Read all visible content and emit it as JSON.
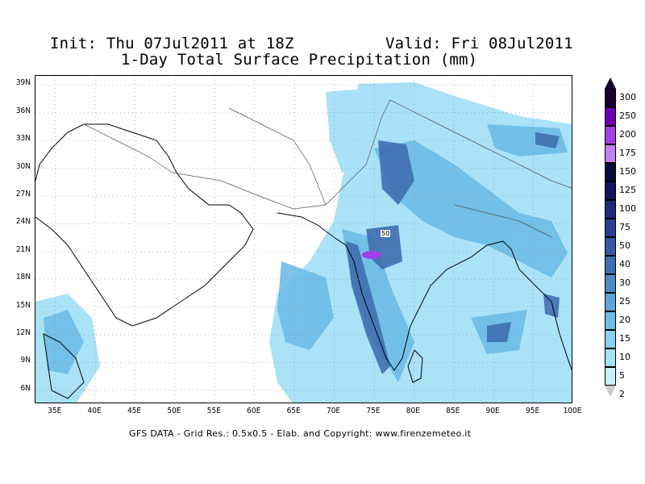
{
  "header": {
    "init": "Init: Thu 07Jul2011 at 18Z",
    "valid": "Valid: Fri 08Jul2011",
    "subtitle": "1-Day Total Surface Precipitation (mm)"
  },
  "map": {
    "lat_labels": [
      "39N",
      "36N",
      "33N",
      "30N",
      "27N",
      "24N",
      "21N",
      "18N",
      "15N",
      "12N",
      "9N",
      "6N"
    ],
    "lon_labels": [
      "35E",
      "40E",
      "45E",
      "50E",
      "55E",
      "60E",
      "65E",
      "70E",
      "75E",
      "80E",
      "85E",
      "90E",
      "95E",
      "100E"
    ],
    "contour_label": "50",
    "region": {
      "lon_min": 32.5,
      "lon_max": 100,
      "lat_min": 4.5,
      "lat_max": 40
    }
  },
  "legend": {
    "labels": [
      "300",
      "250",
      "200",
      "175",
      "150",
      "125",
      "100",
      "75",
      "50",
      "40",
      "30",
      "25",
      "20",
      "15",
      "10",
      "5",
      "2"
    ],
    "colors": [
      "#1a0033",
      "#6b00b3",
      "#a040e6",
      "#c080f0",
      "#0a0a3a",
      "#14145a",
      "#1e2a7a",
      "#2c3f8f",
      "#35589f",
      "#3f6fb0",
      "#4e8ac2",
      "#5ea5d6",
      "#6dbde6",
      "#88d0f0",
      "#a5e0f8",
      "#c9eefc",
      "#ffffff"
    ]
  },
  "footer": "GFS DATA - Grid Res.: 0.5x0.5 - Elab. and Copyright: www.firenzemeteo.it"
}
